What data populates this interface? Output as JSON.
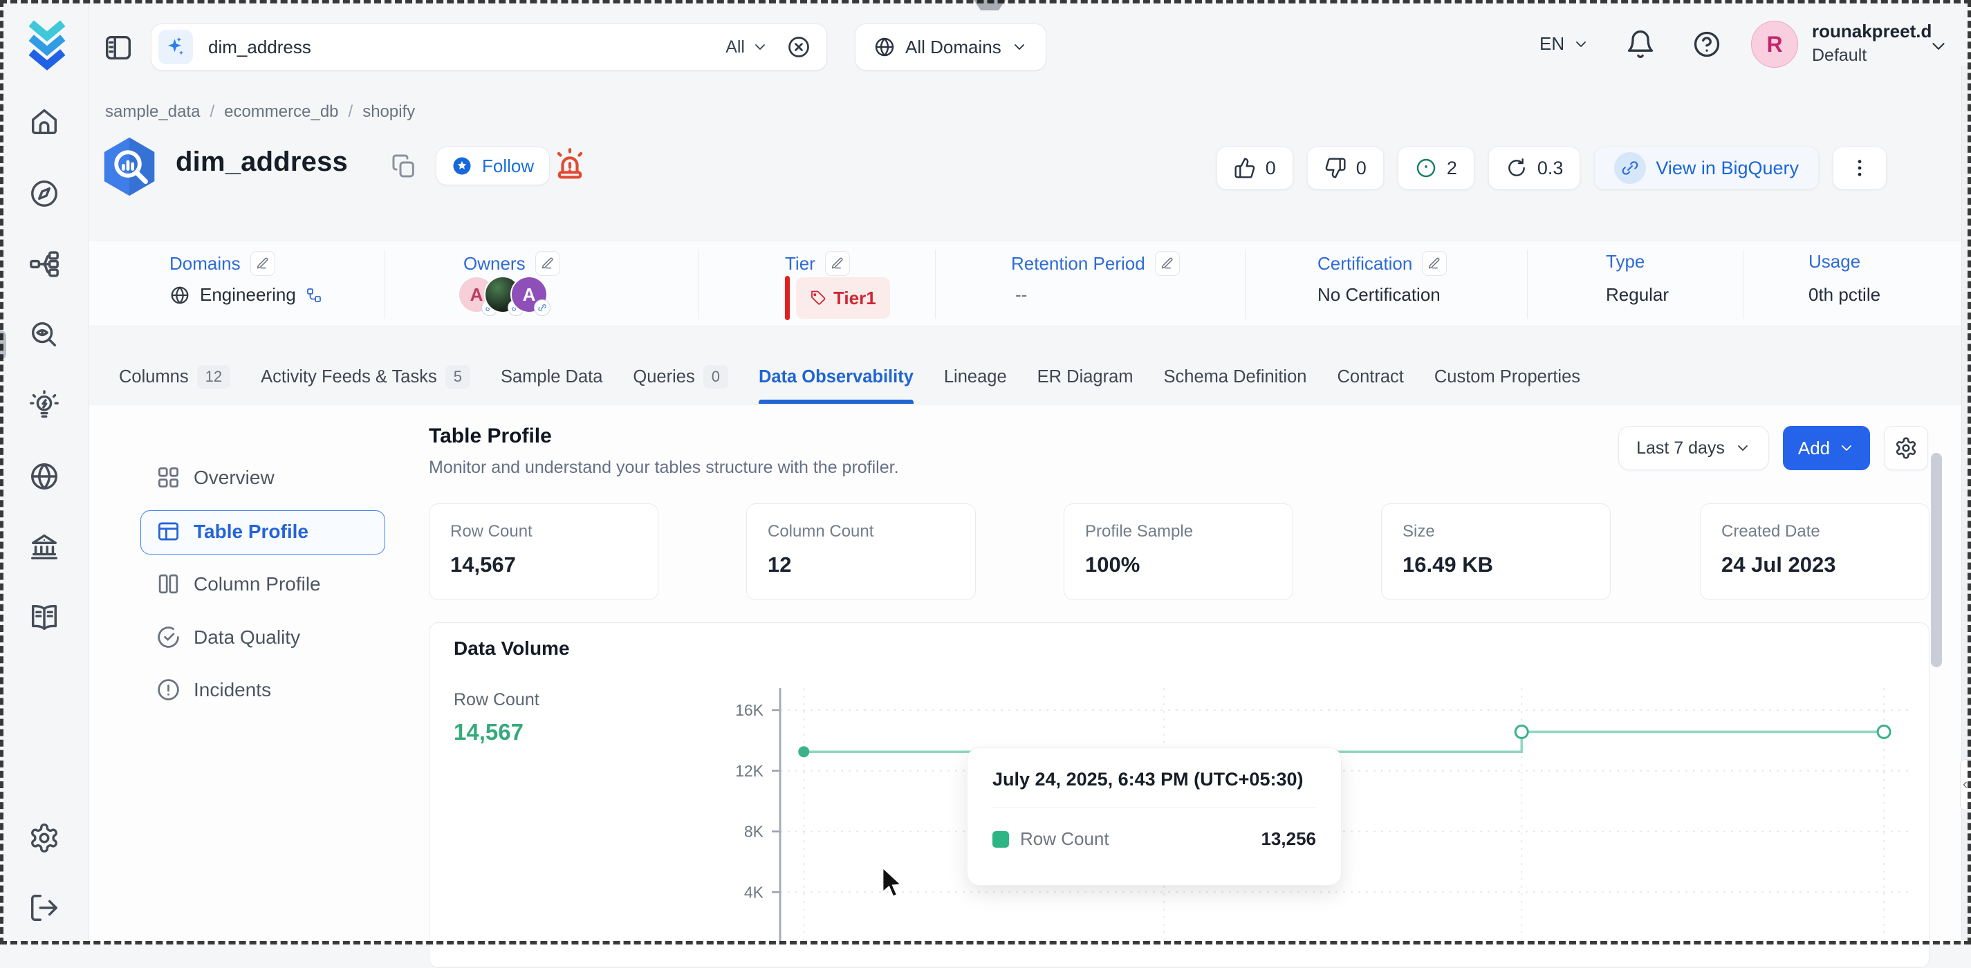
{
  "topbar": {
    "search": {
      "value": "dim_address",
      "scope_label": "All"
    },
    "domain_filter": {
      "label": "All Domains"
    },
    "language": "EN",
    "user": {
      "initial": "R",
      "name": "rounakpreet.d",
      "tenant": "Default"
    }
  },
  "breadcrumb": {
    "items": [
      "sample_data",
      "ecommerce_db",
      "shopify"
    ],
    "separator": "/"
  },
  "asset_header": {
    "title": "dim_address",
    "follow_label": "Follow",
    "actions": {
      "upvotes": "0",
      "downvotes": "0",
      "watching": "2",
      "popularity": "0.3",
      "open_in_source": "View in BigQuery"
    }
  },
  "metadata": {
    "domains": {
      "label": "Domains",
      "value": "Engineering"
    },
    "owners": {
      "label": "Owners",
      "avatar_initials": [
        "A",
        "",
        "A"
      ]
    },
    "tier": {
      "label": "Tier",
      "value": "Tier1"
    },
    "retention": {
      "label": "Retention Period",
      "value": "--"
    },
    "certification": {
      "label": "Certification",
      "value": "No Certification"
    },
    "type": {
      "label": "Type",
      "value": "Regular"
    },
    "usage": {
      "label": "Usage",
      "value": "0th pctile"
    }
  },
  "tabs": [
    {
      "label": "Columns",
      "badge": "12"
    },
    {
      "label": "Activity Feeds & Tasks",
      "badge": "5"
    },
    {
      "label": "Sample Data"
    },
    {
      "label": "Queries",
      "badge": "0"
    },
    {
      "label": "Data Observability"
    },
    {
      "label": "Lineage"
    },
    {
      "label": "ER Diagram"
    },
    {
      "label": "Schema Definition"
    },
    {
      "label": "Contract"
    },
    {
      "label": "Custom Properties"
    }
  ],
  "subnav": [
    {
      "label": "Overview"
    },
    {
      "label": "Table Profile"
    },
    {
      "label": "Column Profile"
    },
    {
      "label": "Data Quality"
    },
    {
      "label": "Incidents"
    }
  ],
  "profile": {
    "title": "Table Profile",
    "subtitle": "Monitor and understand your tables structure with the profiler.",
    "range_selector": "Last 7 days",
    "add_button": "Add",
    "summary_cards": [
      {
        "label": "Row Count",
        "value": "14,567"
      },
      {
        "label": "Column Count",
        "value": "12"
      },
      {
        "label": "Profile Sample",
        "value": "100%"
      },
      {
        "label": "Size",
        "value": "16.49 KB"
      },
      {
        "label": "Created Date",
        "value": "24 Jul 2023"
      }
    ]
  },
  "chart_data": {
    "type": "line",
    "line_shape": "step-after",
    "title": "Data Volume",
    "metric_label": "Row Count",
    "current_value": "14,567",
    "x_window": "Last 7 days",
    "y_axis": {
      "min": 0,
      "max": 17800,
      "ticks": [
        {
          "label": "4K",
          "value": 4000
        },
        {
          "label": "8K",
          "value": 8000
        },
        {
          "label": "12K",
          "value": 12000
        },
        {
          "label": "16K",
          "value": 16000
        }
      ]
    },
    "series": [
      {
        "name": "Row Count",
        "color": "#3cb289",
        "line_color": "#8fd9c0",
        "points": [
          {
            "x_frac": 0.021,
            "value": 13256,
            "marker": "dot"
          },
          {
            "x_frac": 0.34,
            "value": 13256,
            "marker": "none"
          },
          {
            "x_frac": 0.657,
            "value": 14567,
            "marker": "circle"
          },
          {
            "x_frac": 0.978,
            "value": 14567,
            "marker": "circle"
          }
        ]
      }
    ],
    "legend": "none",
    "grid": "dotted",
    "tooltip": {
      "title": "July 24, 2025, 6:43 PM (UTC+05:30)",
      "series_label": "Row Count",
      "value": "13,256"
    }
  },
  "colors": {
    "accent_blue": "#2563eb",
    "label_blue": "#2e6bd6",
    "tier_red": "#cf2733",
    "metric_green": "#35ab7d",
    "line_teal": "#8fd9c0",
    "marker_teal": "#3cb289",
    "border": "#e8eaee"
  }
}
